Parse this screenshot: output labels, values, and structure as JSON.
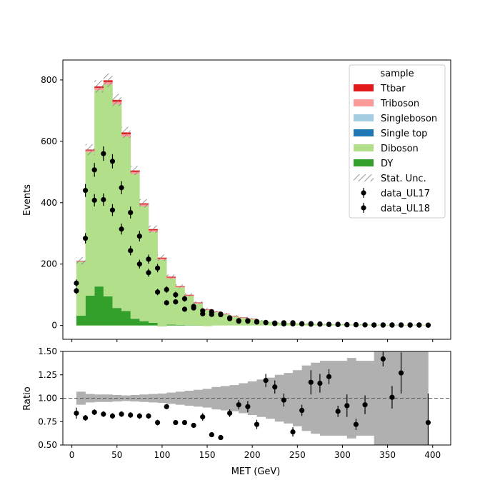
{
  "chart_data": {
    "type": "bar",
    "title": "",
    "xlabel": "MET (GeV)",
    "main_panel": {
      "ylabel": "Events",
      "xlim": [
        -10,
        420
      ],
      "ylim": [
        -45,
        865
      ],
      "yticks": [
        0,
        200,
        400,
        600,
        800
      ],
      "bin_edges": [
        5,
        15,
        25,
        35,
        45,
        55,
        65,
        75,
        85,
        95,
        105,
        115,
        125,
        135,
        145,
        155,
        165,
        175,
        185,
        195,
        205,
        215,
        225,
        235,
        245,
        255,
        265,
        275,
        285,
        295,
        305,
        315,
        325,
        335,
        345,
        355,
        365,
        375,
        385,
        395
      ],
      "stack": [
        {
          "name": "DY",
          "color": "#33a02c",
          "values": [
            32,
            97,
            127,
            95,
            57,
            47,
            22,
            14,
            9,
            -3,
            3,
            2,
            1,
            1,
            -2,
            0,
            0,
            0,
            0,
            0,
            0,
            0,
            0,
            0,
            0,
            0,
            0,
            0,
            0,
            0,
            0,
            0,
            0,
            0,
            0,
            0,
            0,
            0,
            0
          ]
        },
        {
          "name": "Diboson",
          "color": "#b2df8a",
          "values": [
            176,
            468,
            640,
            690,
            664,
            568,
            472,
            374,
            296,
            217,
            150,
            122,
            95,
            70,
            52,
            43,
            36,
            29,
            24,
            20,
            16,
            12,
            9,
            8,
            7,
            6,
            5,
            4,
            4,
            4,
            3,
            3,
            3,
            2,
            2,
            2,
            2,
            2,
            2
          ]
        },
        {
          "name": "Single top",
          "color": "#1f78b4",
          "values": [
            0,
            0,
            0,
            0,
            0,
            0,
            0,
            0,
            0,
            0,
            0,
            0,
            0,
            0,
            0,
            0,
            0,
            0,
            0,
            0,
            0,
            0,
            0,
            0,
            0,
            0,
            0,
            0,
            0,
            0,
            0,
            0,
            0,
            0,
            0,
            0,
            0,
            0,
            0
          ]
        },
        {
          "name": "Singleboson",
          "color": "#a6cee3",
          "values": [
            0,
            0,
            0,
            0,
            0,
            0,
            0,
            0,
            0,
            0,
            0,
            0,
            0,
            0,
            0,
            0,
            0,
            0,
            0,
            0,
            0,
            0,
            0,
            0,
            0,
            0,
            0,
            0,
            0,
            0,
            0,
            0,
            0,
            0,
            0,
            0,
            0,
            0,
            0
          ]
        },
        {
          "name": "Triboson",
          "color": "#fb9a99",
          "values": [
            2,
            5,
            7,
            8,
            8,
            8,
            6,
            6,
            5,
            4,
            3,
            2,
            2,
            2,
            2,
            1,
            1,
            1,
            1,
            1,
            0,
            0,
            0,
            0,
            0,
            0,
            0,
            0,
            0,
            0,
            0,
            0,
            0,
            0,
            0,
            0,
            0,
            0,
            0
          ]
        },
        {
          "name": "Ttbar",
          "color": "#e31a1c",
          "values": [
            1,
            3,
            5,
            6,
            6,
            6,
            5,
            4,
            4,
            3,
            3,
            2,
            2,
            2,
            1,
            1,
            1,
            1,
            1,
            1,
            0,
            0,
            0,
            0,
            0,
            0,
            0,
            0,
            0,
            0,
            0,
            0,
            0,
            0,
            0,
            0,
            0,
            0,
            0
          ]
        }
      ],
      "stat_unc": [
        12,
        18,
        20,
        22,
        20,
        18,
        15,
        14,
        12,
        10,
        7,
        6,
        5,
        4,
        4,
        3,
        3,
        3,
        2,
        2,
        2,
        2,
        2,
        1,
        1,
        1,
        1,
        1,
        1,
        1,
        1,
        1,
        1,
        1,
        1,
        1,
        1,
        1,
        1
      ],
      "stat_unc_label": "Stat. Unc.",
      "data": [
        {
          "name": "data_UL17",
          "x": [
            5,
            15,
            25,
            35,
            45,
            55,
            65,
            75,
            85,
            95,
            105,
            115,
            125,
            135,
            145,
            155,
            165,
            175,
            185,
            195,
            205,
            215,
            225,
            235,
            245,
            255,
            265,
            275,
            285,
            295,
            305,
            315,
            325,
            335,
            345,
            355,
            365,
            375,
            385,
            395
          ],
          "y": [
            138,
            440,
            507,
            560,
            535,
            449,
            368,
            291,
            216,
            187,
            117,
            100,
            87,
            62,
            48,
            45,
            37,
            25,
            16,
            16,
            13,
            10,
            8,
            9,
            9,
            6,
            6,
            5,
            4,
            4,
            3,
            3,
            2,
            2,
            2,
            2,
            2,
            2,
            2,
            1
          ]
        },
        {
          "name": "data_UL18",
          "x": [
            5,
            15,
            25,
            35,
            45,
            55,
            65,
            75,
            85,
            95,
            105,
            115,
            125,
            135,
            145,
            155,
            165,
            175,
            185,
            195,
            205,
            215,
            225,
            235,
            245,
            255,
            265,
            275,
            285,
            295,
            305,
            315,
            325,
            335,
            345,
            355,
            365,
            375,
            385,
            395
          ],
          "y": [
            113,
            284,
            408,
            410,
            376,
            314,
            244,
            200,
            172,
            109,
            74,
            77,
            53,
            57,
            38,
            36,
            35,
            22,
            14,
            14,
            11,
            9,
            6,
            5,
            5,
            5,
            4,
            4,
            3,
            3,
            2,
            2,
            2,
            1,
            1,
            1,
            1,
            1,
            1,
            1
          ]
        }
      ],
      "legend_title": "sample",
      "legend_position": "top-right"
    },
    "ratio_panel": {
      "ylabel": "Ratio",
      "xlim": [
        -10,
        420
      ],
      "ylim": [
        0.5,
        1.5
      ],
      "yticks": [
        "0.50",
        "0.75",
        "1.00",
        "1.25",
        "1.50"
      ],
      "xticks": [
        0,
        50,
        100,
        150,
        200,
        250,
        300,
        350,
        400
      ],
      "reference_line": 1.0,
      "band_halfwidth": [
        0.07,
        0.045,
        0.04,
        0.04,
        0.035,
        0.03,
        0.035,
        0.04,
        0.045,
        0.05,
        0.06,
        0.07,
        0.08,
        0.09,
        0.1,
        0.12,
        0.13,
        0.14,
        0.16,
        0.18,
        0.2,
        0.22,
        0.25,
        0.27,
        0.3,
        0.35,
        0.38,
        0.4,
        0.4,
        0.4,
        0.43,
        0.4,
        0.4,
        0.5,
        0.6,
        0.6,
        0.7,
        0.9,
        0.95
      ],
      "points": [
        {
          "x": 5,
          "y": 0.84,
          "err": 0.06
        },
        {
          "x": 15,
          "y": 0.79,
          "err": 0.03
        },
        {
          "x": 25,
          "y": 0.85,
          "err": 0.03
        },
        {
          "x": 35,
          "y": 0.83,
          "err": 0.03
        },
        {
          "x": 45,
          "y": 0.81,
          "err": 0.03
        },
        {
          "x": 55,
          "y": 0.83,
          "err": 0.03
        },
        {
          "x": 65,
          "y": 0.82,
          "err": 0.03
        },
        {
          "x": 75,
          "y": 0.81,
          "err": 0.03
        },
        {
          "x": 85,
          "y": 0.81,
          "err": 0.03
        },
        {
          "x": 95,
          "y": 0.74,
          "err": 0.03
        },
        {
          "x": 105,
          "y": 0.91,
          "err": 0.02
        },
        {
          "x": 115,
          "y": 0.74,
          "err": 0.02
        },
        {
          "x": 125,
          "y": 0.74,
          "err": 0.02
        },
        {
          "x": 135,
          "y": 0.71,
          "err": 0.02
        },
        {
          "x": 145,
          "y": 0.8,
          "err": 0.04
        },
        {
          "x": 155,
          "y": 0.61,
          "err": 0.02
        },
        {
          "x": 165,
          "y": 0.58,
          "err": 0.02
        },
        {
          "x": 175,
          "y": 0.84,
          "err": 0.04
        },
        {
          "x": 185,
          "y": 0.93,
          "err": 0.05
        },
        {
          "x": 195,
          "y": 0.91,
          "err": 0.06
        },
        {
          "x": 205,
          "y": 0.72,
          "err": 0.05
        },
        {
          "x": 215,
          "y": 1.19,
          "err": 0.07
        },
        {
          "x": 225,
          "y": 1.12,
          "err": 0.07
        },
        {
          "x": 235,
          "y": 0.98,
          "err": 0.07
        },
        {
          "x": 245,
          "y": 0.64,
          "err": 0.05
        },
        {
          "x": 255,
          "y": 0.87,
          "err": 0.06
        },
        {
          "x": 265,
          "y": 1.17,
          "err": 0.13
        },
        {
          "x": 275,
          "y": 1.16,
          "err": 0.1
        },
        {
          "x": 285,
          "y": 1.23,
          "err": 0.08
        },
        {
          "x": 295,
          "y": 0.86,
          "err": 0.06
        },
        {
          "x": 305,
          "y": 0.92,
          "err": 0.12
        },
        {
          "x": 315,
          "y": 0.72,
          "err": 0.06
        },
        {
          "x": 325,
          "y": 0.93,
          "err": 0.1
        },
        {
          "x": 345,
          "y": 1.42,
          "err": 0.08
        },
        {
          "x": 355,
          "y": 1.01,
          "err": 0.12
        },
        {
          "x": 365,
          "y": 1.27,
          "err": 0.22
        },
        {
          "x": 395,
          "y": 0.74,
          "err": 0.31
        }
      ]
    }
  }
}
